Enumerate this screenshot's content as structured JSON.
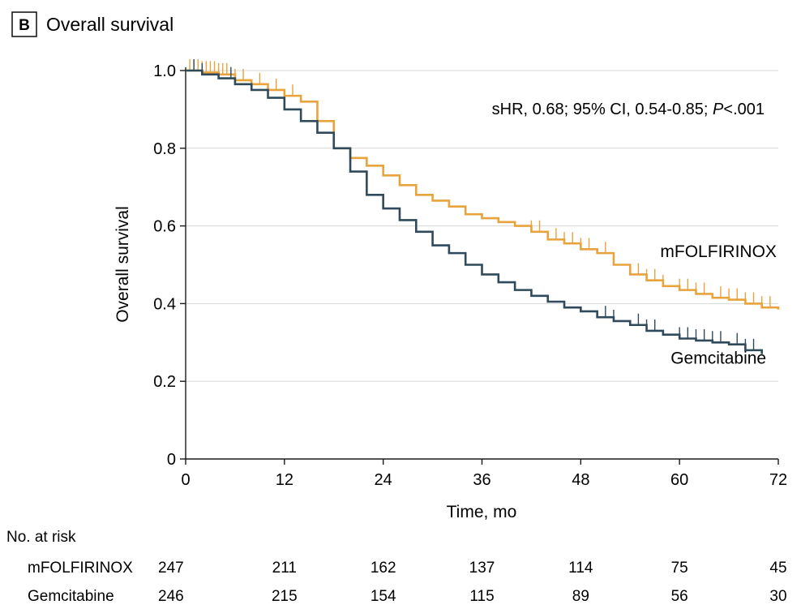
{
  "panel": {
    "letter": "B",
    "title": "Overall survival"
  },
  "annotation": {
    "prefix": "sHR, 0.68; 95% CI, 0.54-0.85; ",
    "p_symbol": "P",
    "p_value": "<.001"
  },
  "chart_data": {
    "type": "line",
    "subtype": "kaplan-meier",
    "title": "Overall survival",
    "xlabel": "Time, mo",
    "ylabel": "Overall survival",
    "xlim": [
      0,
      72
    ],
    "ylim": [
      0,
      1.0
    ],
    "xticks": [
      0,
      12,
      24,
      36,
      48,
      60,
      72
    ],
    "yticks": [
      0,
      0.2,
      0.4,
      0.6,
      0.8,
      1.0
    ],
    "ytick_labels": [
      "0",
      "0.2",
      "0.4",
      "0.6",
      "0.8",
      "1.0"
    ],
    "grid": "horizontal",
    "series": [
      {
        "name": "mFOLFIRINOX",
        "color": "#e8a33d",
        "x": [
          0,
          2,
          4,
          6,
          8,
          10,
          12,
          14,
          16,
          18,
          20,
          22,
          24,
          26,
          28,
          30,
          32,
          34,
          36,
          38,
          40,
          42,
          44,
          46,
          48,
          50,
          52,
          54,
          56,
          58,
          60,
          62,
          64,
          66,
          68,
          70,
          72
        ],
        "y": [
          1.0,
          0.995,
          0.99,
          0.975,
          0.965,
          0.95,
          0.935,
          0.92,
          0.87,
          0.8,
          0.775,
          0.755,
          0.73,
          0.705,
          0.68,
          0.665,
          0.65,
          0.63,
          0.62,
          0.61,
          0.6,
          0.585,
          0.565,
          0.555,
          0.54,
          0.53,
          0.5,
          0.475,
          0.46,
          0.445,
          0.435,
          0.425,
          0.415,
          0.41,
          0.4,
          0.39,
          0.385
        ],
        "censor_x": [
          0.5,
          1,
          1.5,
          2,
          2.5,
          3,
          3.5,
          4,
          4.5,
          5,
          6,
          7,
          9,
          11,
          13,
          42,
          43,
          45,
          46,
          47,
          48,
          49,
          51,
          55,
          56,
          57,
          58,
          60,
          61,
          62,
          63,
          65,
          66,
          67,
          68,
          69,
          70,
          71
        ]
      },
      {
        "name": "Gemcitabine",
        "color": "#2f4a5a",
        "x": [
          0,
          2,
          4,
          6,
          8,
          10,
          12,
          14,
          16,
          18,
          20,
          22,
          24,
          26,
          28,
          30,
          32,
          34,
          36,
          38,
          40,
          42,
          44,
          46,
          48,
          50,
          52,
          54,
          56,
          58,
          60,
          62,
          64,
          66,
          68,
          70
        ],
        "y": [
          1.0,
          0.99,
          0.98,
          0.965,
          0.95,
          0.93,
          0.9,
          0.87,
          0.84,
          0.8,
          0.74,
          0.68,
          0.645,
          0.615,
          0.585,
          0.55,
          0.53,
          0.5,
          0.475,
          0.455,
          0.435,
          0.42,
          0.405,
          0.39,
          0.38,
          0.365,
          0.355,
          0.345,
          0.33,
          0.32,
          0.31,
          0.305,
          0.3,
          0.295,
          0.28,
          0.27
        ],
        "censor_x": [
          1,
          2,
          5.5,
          34,
          51,
          52,
          55,
          56,
          57,
          60,
          61,
          62,
          63,
          64,
          65,
          67,
          68,
          69
        ]
      }
    ],
    "series_labels": [
      {
        "name": "mFOLFIRINOX",
        "x": 60,
        "y": 0.52
      },
      {
        "name": "Gemcitabine",
        "x": 60,
        "y": 0.245
      }
    ]
  },
  "risk_table": {
    "title": "No. at risk",
    "timepoints": [
      0,
      12,
      24,
      36,
      48,
      60,
      72
    ],
    "rows": [
      {
        "label": "mFOLFIRINOX",
        "values": [
          "247",
          "211",
          "162",
          "137",
          "114",
          "75",
          "45"
        ]
      },
      {
        "label": "Gemcitabine",
        "values": [
          "246",
          "215",
          "154",
          "115",
          "89",
          "56",
          "30"
        ]
      }
    ]
  }
}
